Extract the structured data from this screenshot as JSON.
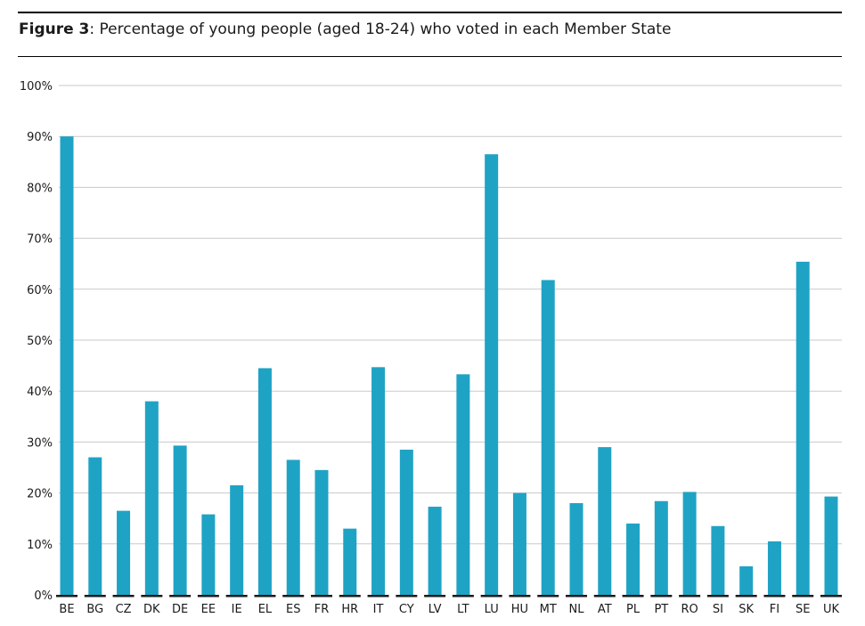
{
  "title": {
    "label": "Figure 3",
    "separator": ": ",
    "text": "Percentage of young people (aged 18-24) who voted in each Member State"
  },
  "chart_data": {
    "type": "bar",
    "title": "Percentage of young people (aged 18-24) who voted in each Member State",
    "xlabel": "",
    "ylabel": "",
    "ylim": [
      0,
      100
    ],
    "yticks": [
      0,
      10,
      20,
      30,
      40,
      50,
      60,
      70,
      80,
      90,
      100
    ],
    "ytick_labels": [
      "0%",
      "10%",
      "20%",
      "30%",
      "40%",
      "50%",
      "60%",
      "70%",
      "80%",
      "90%",
      "100%"
    ],
    "grid": true,
    "legend": "none",
    "bar_color": "#1fa3c5",
    "categories": [
      "BE",
      "BG",
      "CZ",
      "DK",
      "DE",
      "EE",
      "IE",
      "EL",
      "ES",
      "FR",
      "HR",
      "IT",
      "CY",
      "LV",
      "LT",
      "LU",
      "HU",
      "MT",
      "NL",
      "AT",
      "PL",
      "PT",
      "RO",
      "SI",
      "SK",
      "FI",
      "SE",
      "UK"
    ],
    "values": [
      90,
      27,
      16.5,
      38,
      29.3,
      15.8,
      21.5,
      44.5,
      26.5,
      24.5,
      13,
      44.7,
      28.5,
      17.3,
      43.3,
      86.5,
      20,
      61.8,
      18,
      29,
      14,
      18.4,
      20.2,
      13.5,
      5.6,
      10.5,
      65.4,
      19.3
    ]
  }
}
